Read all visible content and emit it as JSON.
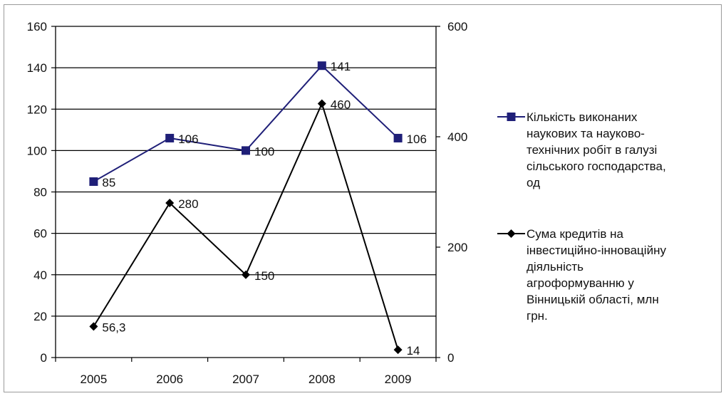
{
  "chart_data": {
    "type": "line",
    "title": "",
    "categories": [
      "2005",
      "2006",
      "2007",
      "2008",
      "2009"
    ],
    "y_left": {
      "min": 0,
      "max": 160,
      "step": 20,
      "ticks": [
        "0",
        "20",
        "40",
        "60",
        "80",
        "100",
        "120",
        "140",
        "160"
      ]
    },
    "y_right": {
      "min": 0,
      "max": 600,
      "step": 200,
      "ticks": [
        "0",
        "200",
        "400",
        "600"
      ]
    },
    "grid": true,
    "legend_position": "right",
    "series": [
      {
        "name_lines": [
          "Кількість виконаних",
          "наукових та науково-",
          "технічних робіт в галузі",
          "сільського господарства,",
          "од"
        ],
        "axis": "left",
        "marker": "square",
        "color": "#1f1f78",
        "values": [
          85,
          106,
          100,
          141,
          106
        ],
        "labels": [
          "85",
          "106",
          "100",
          "141",
          "106"
        ]
      },
      {
        "name_lines": [
          "Сума кредитів на",
          "інвестиційно-інноваційну",
          "діяльність",
          "агроформуванню у",
          "Вінницькій області, млн",
          "грн."
        ],
        "axis": "right",
        "marker": "diamond",
        "color": "#000000",
        "values": [
          56.3,
          280,
          150,
          460,
          14
        ],
        "labels": [
          "56,3",
          "280",
          "150",
          "460",
          "14"
        ]
      }
    ]
  }
}
